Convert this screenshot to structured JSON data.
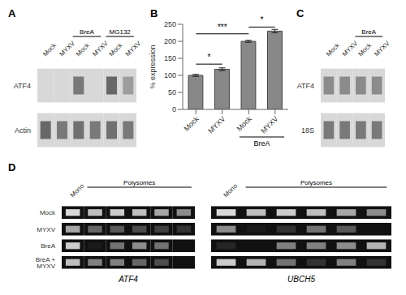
{
  "chart_data": [
    {
      "type": "heatmap",
      "title": "A",
      "categories": [
        "Mock",
        "MYXV",
        "Mock",
        "MYXV",
        "Mock",
        "MYXV"
      ],
      "series": [
        {
          "name": "ATF4",
          "values": [
            0.0,
            0.0,
            0.75,
            0.0,
            0.85,
            0.55
          ]
        },
        {
          "name": "Actin",
          "values": [
            0.85,
            0.75,
            0.8,
            0.75,
            0.8,
            0.75
          ]
        }
      ],
      "annotations": [
        {
          "text": "BreA",
          "x": [
            2,
            3
          ]
        },
        {
          "text": "MG132",
          "x": [
            4,
            5
          ]
        }
      ]
    },
    {
      "type": "bar",
      "title": "B",
      "categories": [
        "Mock",
        "MYXV",
        "Mock",
        "MYXV"
      ],
      "values": [
        100,
        118,
        200,
        230
      ],
      "errors": [
        3,
        4,
        3,
        5
      ],
      "color": "#888888",
      "ylabel": "% expression",
      "ylim": [
        0,
        250
      ],
      "yticks": [
        0,
        50,
        100,
        150,
        200,
        250
      ],
      "annotations": [
        {
          "text": "BreA",
          "x": [
            2,
            3
          ]
        },
        {
          "text": "*",
          "x": [
            0,
            1
          ],
          "y": 133
        },
        {
          "text": "***",
          "x": [
            0,
            2
          ],
          "y": 222
        },
        {
          "text": "*",
          "x": [
            2,
            3
          ],
          "y": 242
        }
      ]
    },
    {
      "type": "heatmap",
      "title": "C",
      "categories": [
        "Mock",
        "MYXV",
        "Mock",
        "MYXV"
      ],
      "series": [
        {
          "name": "ATF4",
          "values": [
            0.65,
            0.65,
            0.65,
            0.65
          ]
        },
        {
          "name": "18S",
          "values": [
            0.75,
            0.75,
            0.75,
            0.75
          ]
        }
      ],
      "annotations": [
        {
          "text": "BreA",
          "x": [
            2,
            3
          ]
        }
      ]
    },
    {
      "type": "heatmap",
      "title": "D",
      "subtitle": "ATF4",
      "categories": [
        "Mono",
        null,
        null,
        null,
        null,
        null
      ],
      "series": [
        {
          "name": "Mock",
          "values": [
            0.85,
            0.75,
            0.8,
            0.75,
            0.65,
            0.55
          ]
        },
        {
          "name": "MYXV",
          "values": [
            0.65,
            0.4,
            0.35,
            0.3,
            0.25,
            0.2
          ]
        },
        {
          "name": "BreA",
          "values": [
            0.8,
            0.1,
            0.45,
            0.55,
            0.45,
            0.0
          ]
        },
        {
          "name": "BreA + MYXV",
          "values": [
            0.75,
            0.5,
            0.5,
            0.4,
            0.3,
            0.0
          ]
        }
      ],
      "annotations": [
        {
          "text": "Polysomes",
          "x": [
            1,
            5
          ]
        }
      ]
    },
    {
      "type": "heatmap",
      "subtitle": "UBCH5",
      "categories": [
        "Mono",
        null,
        null,
        null,
        null,
        null
      ],
      "series": [
        {
          "values": [
            0.85,
            0.75,
            0.8,
            0.75,
            0.65,
            0.55
          ]
        },
        {
          "values": [
            0.55,
            0.1,
            0.2,
            0.45,
            0.35,
            0.0
          ]
        },
        {
          "values": [
            0.15,
            0.0,
            0.5,
            0.5,
            0.55,
            0.7
          ]
        },
        {
          "values": [
            0.8,
            0.7,
            0.45,
            0.2,
            0.5,
            0.2
          ]
        }
      ],
      "annotations": [
        {
          "text": "Polysomes",
          "x": [
            1,
            5
          ]
        }
      ]
    }
  ]
}
